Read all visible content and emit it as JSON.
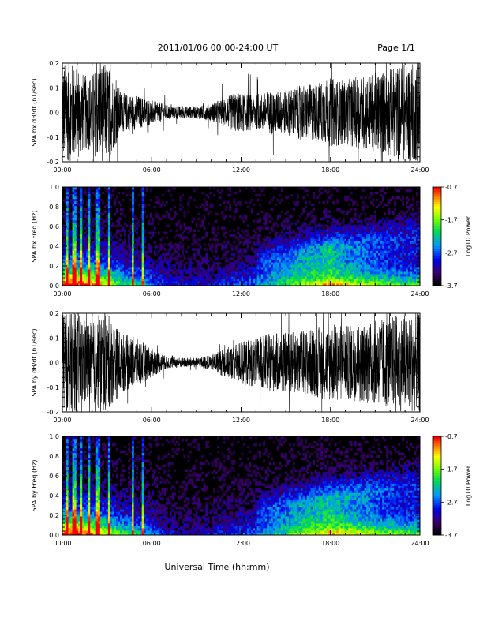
{
  "header": {
    "title": "2011/01/06  00:00-24:00 UT",
    "page": "Page 1/1"
  },
  "footer": {
    "xlabel": "Universal Time (hh:mm)"
  },
  "chart_data": [
    {
      "type": "line",
      "ylabel": "SPA bx dB/dt (nT/sec)",
      "x_ticks": [
        "00:00",
        "06:00",
        "12:00",
        "18:00",
        "24:00"
      ],
      "y_ticks": [
        "-0.2",
        "-0.1",
        "0.0",
        "0.1",
        "0.2"
      ],
      "xlim_hours": [
        0,
        24
      ],
      "ylim": [
        -0.2,
        0.2
      ],
      "envelope": {
        "hours": [
          0,
          0.5,
          1,
          1.5,
          2,
          2.5,
          3,
          4,
          5,
          6,
          7,
          8,
          9,
          10,
          10.5,
          11,
          11.5,
          12,
          13,
          14,
          15,
          16,
          17,
          18,
          19,
          20,
          21,
          22,
          23,
          24
        ],
        "amplitude": [
          0.2,
          0.2,
          0.2,
          0.15,
          0.16,
          0.2,
          0.2,
          0.08,
          0.07,
          0.05,
          0.03,
          0.025,
          0.025,
          0.035,
          0.05,
          0.06,
          0.08,
          0.08,
          0.07,
          0.09,
          0.09,
          0.11,
          0.12,
          0.14,
          0.13,
          0.15,
          0.16,
          0.18,
          0.2,
          0.2
        ]
      }
    },
    {
      "type": "heatmap",
      "ylabel": "SPA bx Freq (Hz)",
      "colorbar_label": "Log10 Power",
      "colorbar_ticks": [
        "-0.7",
        "-1.7",
        "-2.7",
        "-3.7"
      ],
      "x_ticks": [
        "00:00",
        "06:00",
        "12:00",
        "18:00",
        "24:00"
      ],
      "y_ticks": [
        "0.0",
        "0.2",
        "0.4",
        "0.6",
        "0.8",
        "1.0"
      ],
      "xlim_hours": [
        0,
        24
      ],
      "ylim": [
        0,
        1.0
      ],
      "zlim": [
        -3.7,
        -0.7
      ],
      "activity": {
        "hours": [
          0,
          1,
          2,
          3,
          4,
          5,
          6,
          7,
          8,
          9,
          10,
          11,
          12,
          13,
          14,
          15,
          16,
          17,
          18,
          19,
          20,
          21,
          22,
          23,
          24
        ],
        "level": [
          0.95,
          1.0,
          0.85,
          0.75,
          0.55,
          0.5,
          0.35,
          0.25,
          0.2,
          0.2,
          0.2,
          0.25,
          0.3,
          0.35,
          0.45,
          0.55,
          0.65,
          0.75,
          0.85,
          0.75,
          0.7,
          0.65,
          0.6,
          0.55,
          0.6
        ]
      }
    },
    {
      "type": "line",
      "ylabel": "SPA by dB/dt (nT/sec)",
      "x_ticks": [
        "00:00",
        "06:00",
        "12:00",
        "18:00",
        "24:00"
      ],
      "y_ticks": [
        "-0.2",
        "-0.1",
        "0.0",
        "0.1",
        "0.2"
      ],
      "xlim_hours": [
        0,
        24
      ],
      "ylim": [
        -0.2,
        0.2
      ],
      "envelope": {
        "hours": [
          0,
          0.5,
          1,
          1.5,
          2,
          2.5,
          3,
          4,
          5,
          6,
          7,
          8,
          9,
          10,
          10.5,
          11,
          11.5,
          12,
          13,
          14,
          15,
          16,
          17,
          18,
          19,
          20,
          21,
          22,
          23,
          24
        ],
        "amplitude": [
          0.2,
          0.2,
          0.2,
          0.18,
          0.16,
          0.2,
          0.2,
          0.12,
          0.1,
          0.06,
          0.025,
          0.02,
          0.02,
          0.03,
          0.05,
          0.06,
          0.07,
          0.09,
          0.1,
          0.12,
          0.12,
          0.13,
          0.14,
          0.16,
          0.15,
          0.16,
          0.17,
          0.19,
          0.2,
          0.2
        ]
      }
    },
    {
      "type": "heatmap",
      "ylabel": "SPA by Freq (Hz)",
      "colorbar_label": "Log10 Power",
      "colorbar_ticks": [
        "-0.7",
        "-1.7",
        "-2.7",
        "-3.7"
      ],
      "x_ticks": [
        "00:00",
        "06:00",
        "12:00",
        "18:00",
        "24:00"
      ],
      "y_ticks": [
        "0.0",
        "0.2",
        "0.4",
        "0.6",
        "0.8",
        "1.0"
      ],
      "xlim_hours": [
        0,
        24
      ],
      "ylim": [
        0,
        1.0
      ],
      "zlim": [
        -3.7,
        -0.7
      ],
      "activity": {
        "hours": [
          0,
          1,
          2,
          3,
          4,
          5,
          6,
          7,
          8,
          9,
          10,
          11,
          12,
          13,
          14,
          15,
          16,
          17,
          18,
          19,
          20,
          21,
          22,
          23,
          24
        ],
        "level": [
          0.95,
          1.0,
          0.85,
          0.75,
          0.55,
          0.5,
          0.35,
          0.22,
          0.18,
          0.18,
          0.2,
          0.25,
          0.3,
          0.35,
          0.45,
          0.55,
          0.65,
          0.75,
          0.85,
          0.8,
          0.75,
          0.7,
          0.65,
          0.6,
          0.6
        ]
      }
    }
  ]
}
